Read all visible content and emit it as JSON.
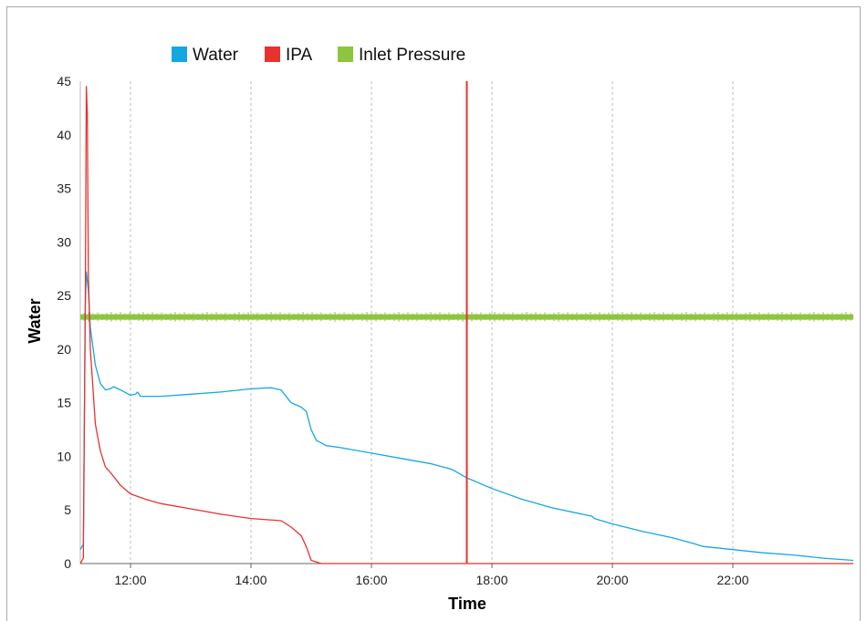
{
  "chart_data": {
    "type": "line",
    "title": "",
    "xlabel": "Time",
    "ylabel": "Water",
    "xlim": [
      "11:10",
      "24:00"
    ],
    "ylim": [
      0,
      45
    ],
    "yticks": [
      0,
      5,
      10,
      15,
      20,
      25,
      30,
      35,
      40,
      45
    ],
    "xticks": [
      "12:00",
      "14:00",
      "16:00",
      "18:00",
      "20:00",
      "22:00"
    ],
    "grid": "vertical dashed at x ticks",
    "legend_position": "top-left",
    "marker_line": {
      "x": "17:35",
      "color": "#e8322f"
    },
    "series": [
      {
        "name": "Water",
        "color": "#15a8e0",
        "points": [
          [
            "11:10",
            1.3
          ],
          [
            "11:13",
            1.8
          ],
          [
            "11:15",
            24
          ],
          [
            "11:16",
            27.2
          ],
          [
            "11:18",
            25.5
          ],
          [
            "11:20",
            22.0
          ],
          [
            "11:25",
            18.5
          ],
          [
            "11:30",
            16.8
          ],
          [
            "11:35",
            16.2
          ],
          [
            "11:40",
            16.3
          ],
          [
            "11:43",
            16.5
          ],
          [
            "11:50",
            16.2
          ],
          [
            "12:00",
            15.7
          ],
          [
            "12:05",
            15.8
          ],
          [
            "12:07",
            16.0
          ],
          [
            "12:10",
            15.6
          ],
          [
            "12:30",
            15.6
          ],
          [
            "13:00",
            15.8
          ],
          [
            "13:30",
            16.0
          ],
          [
            "14:00",
            16.3
          ],
          [
            "14:20",
            16.4
          ],
          [
            "14:30",
            16.2
          ],
          [
            "14:40",
            15.0
          ],
          [
            "14:50",
            14.6
          ],
          [
            "14:55",
            14.2
          ],
          [
            "15:00",
            12.5
          ],
          [
            "15:05",
            11.5
          ],
          [
            "15:15",
            11.0
          ],
          [
            "15:30",
            10.8
          ],
          [
            "16:00",
            10.3
          ],
          [
            "16:30",
            9.8
          ],
          [
            "17:00",
            9.3
          ],
          [
            "17:20",
            8.8
          ],
          [
            "17:35",
            8.0
          ],
          [
            "18:00",
            7.0
          ],
          [
            "18:30",
            6.0
          ],
          [
            "19:00",
            5.2
          ],
          [
            "19:30",
            4.6
          ],
          [
            "19:40",
            4.4
          ],
          [
            "19:42",
            4.2
          ],
          [
            "20:00",
            3.7
          ],
          [
            "20:30",
            3.0
          ],
          [
            "21:00",
            2.4
          ],
          [
            "21:20",
            1.9
          ],
          [
            "21:30",
            1.6
          ],
          [
            "22:00",
            1.3
          ],
          [
            "22:30",
            1.0
          ],
          [
            "23:00",
            0.8
          ],
          [
            "23:30",
            0.5
          ],
          [
            "24:00",
            0.3
          ]
        ]
      },
      {
        "name": "IPA",
        "color": "#e8322f",
        "points": [
          [
            "11:10",
            0
          ],
          [
            "11:13",
            0.5
          ],
          [
            "11:15",
            25
          ],
          [
            "11:16",
            44.5
          ],
          [
            "11:17",
            42
          ],
          [
            "11:18",
            27
          ],
          [
            "11:20",
            20
          ],
          [
            "11:25",
            13
          ],
          [
            "11:30",
            10.5
          ],
          [
            "11:35",
            9.0
          ],
          [
            "11:40",
            8.5
          ],
          [
            "11:50",
            7.3
          ],
          [
            "12:00",
            6.5
          ],
          [
            "12:15",
            6.0
          ],
          [
            "12:30",
            5.6
          ],
          [
            "13:00",
            5.1
          ],
          [
            "13:30",
            4.6
          ],
          [
            "14:00",
            4.2
          ],
          [
            "14:30",
            4.0
          ],
          [
            "14:40",
            3.4
          ],
          [
            "14:50",
            2.6
          ],
          [
            "14:55",
            1.6
          ],
          [
            "15:00",
            0.3
          ],
          [
            "15:10",
            0
          ],
          [
            "24:00",
            0
          ]
        ]
      },
      {
        "name": "Inlet Pressure",
        "color": "#8cc63f",
        "points": [
          [
            "11:10",
            23.0
          ],
          [
            "24:00",
            23.0
          ]
        ]
      }
    ]
  }
}
